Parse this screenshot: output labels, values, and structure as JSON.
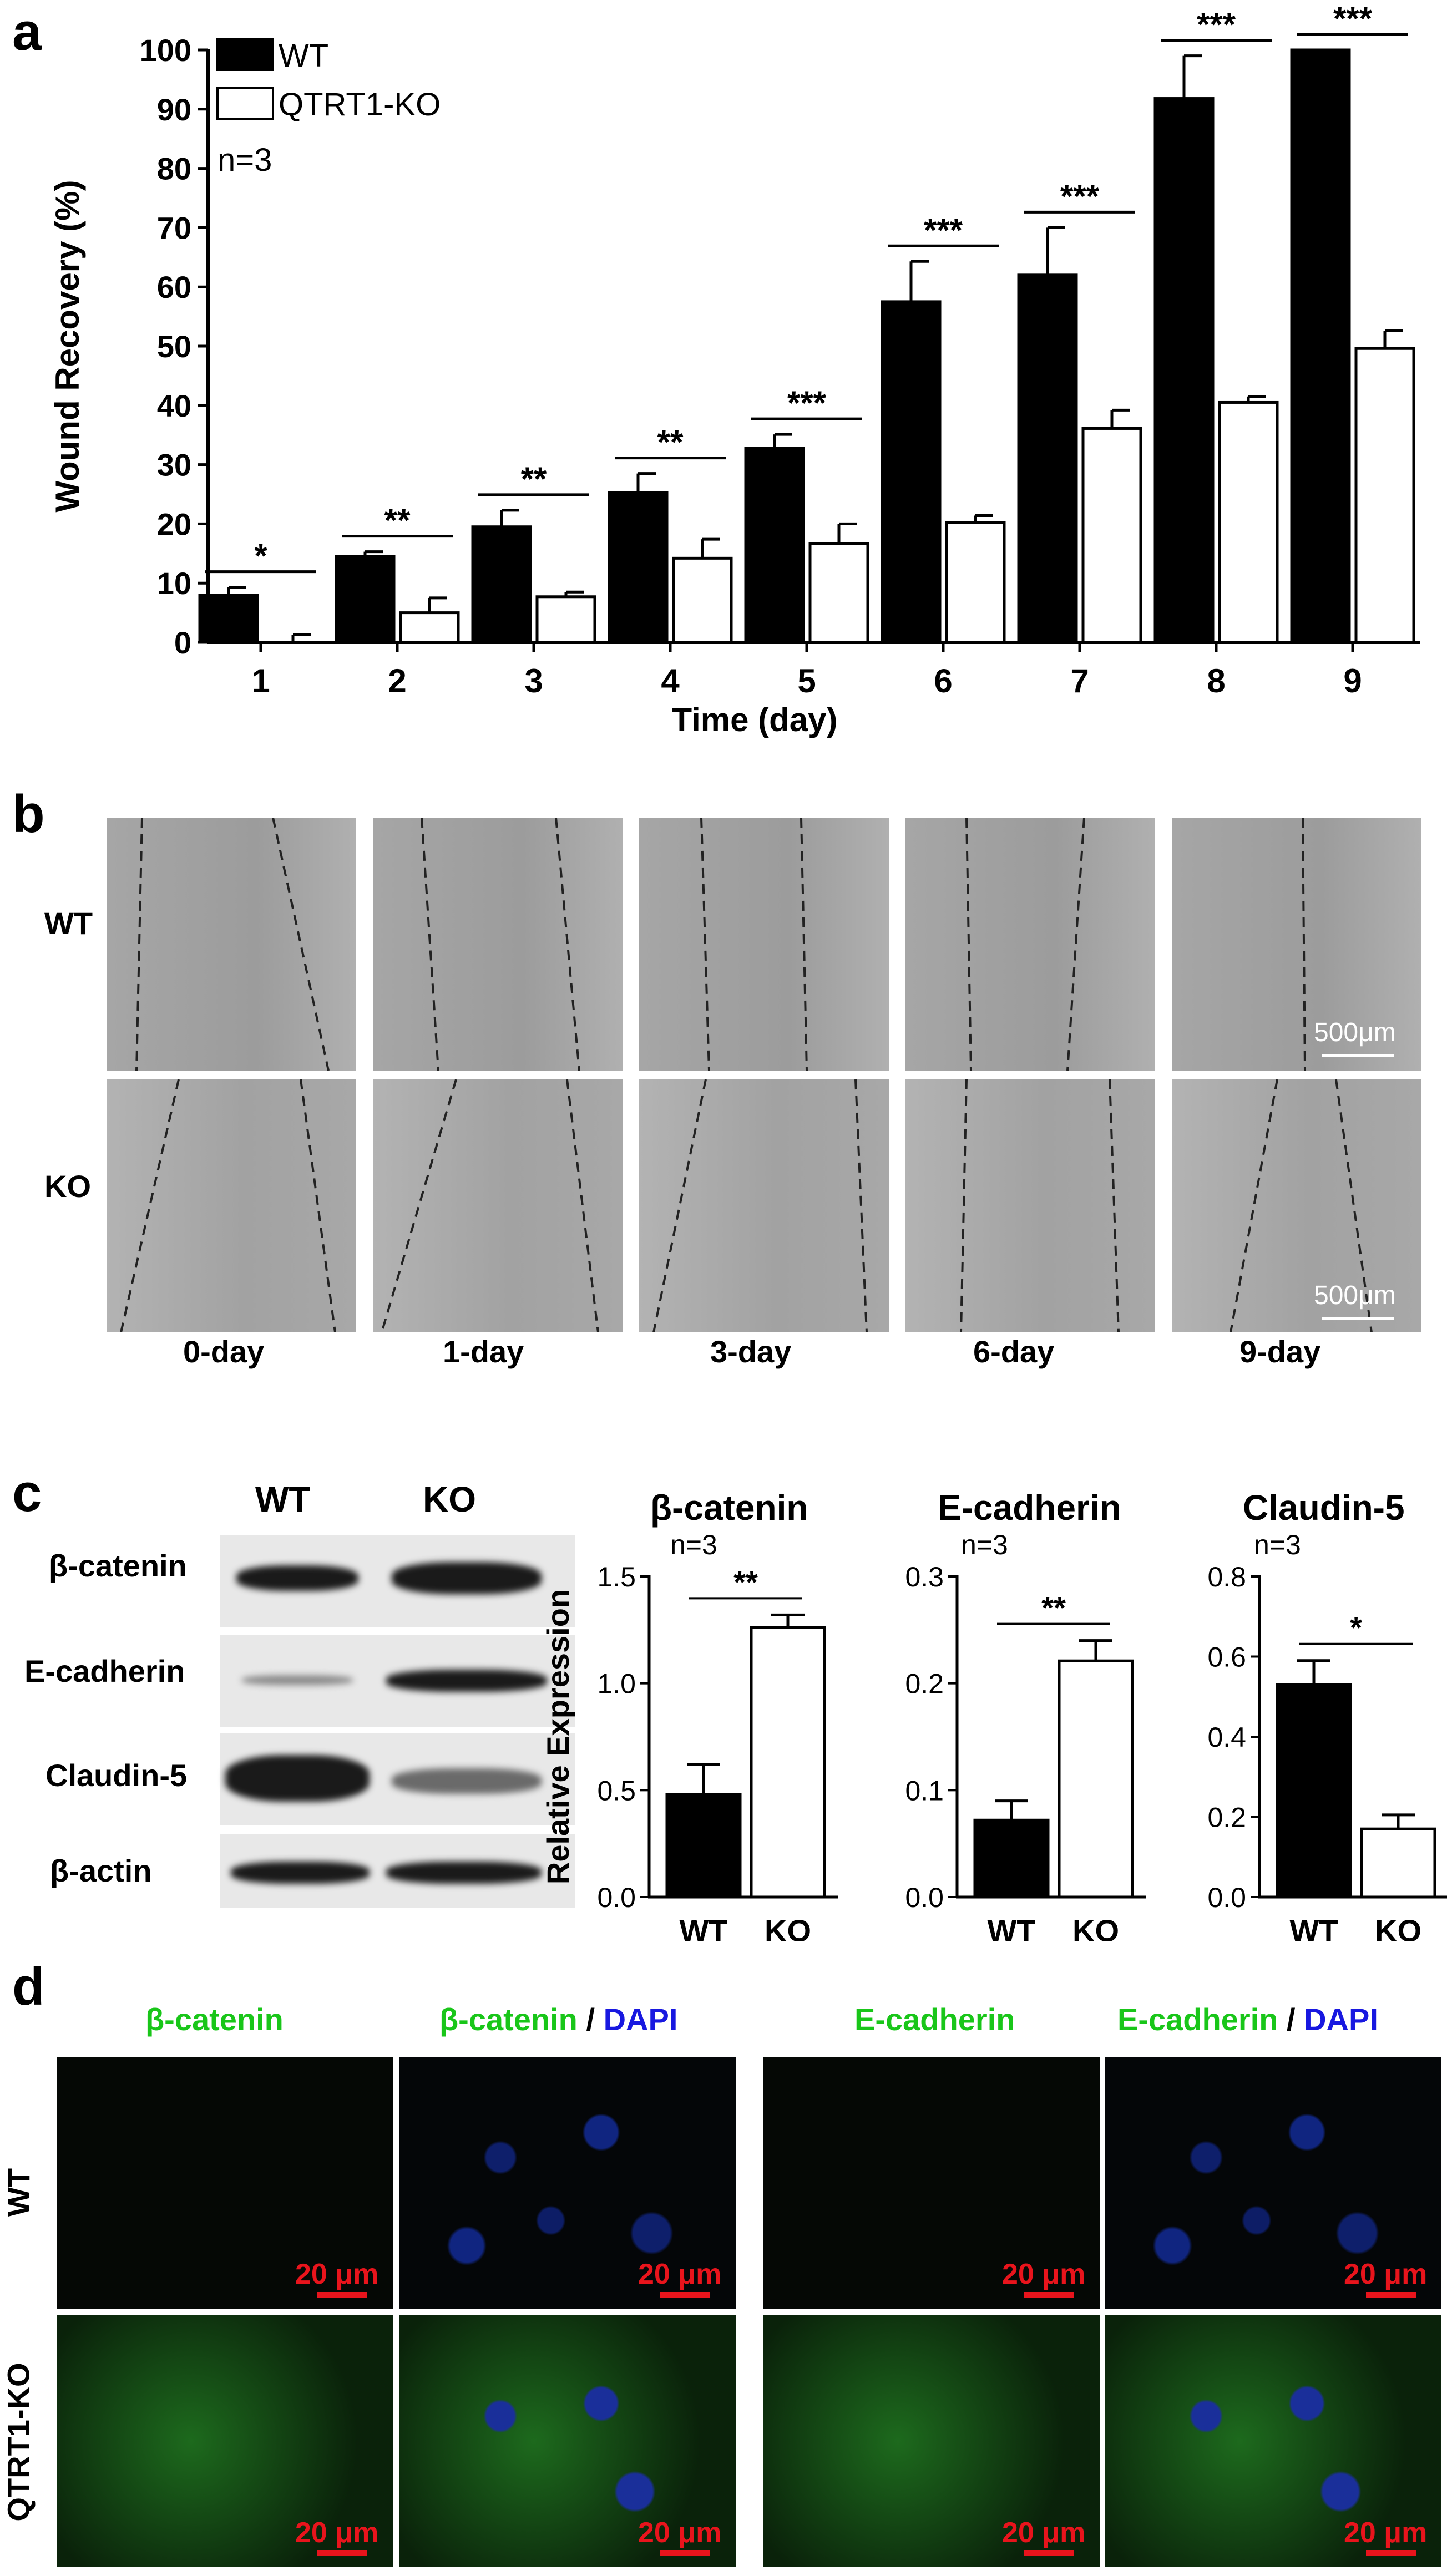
{
  "panels": {
    "a": "a",
    "b": "b",
    "c": "c",
    "d": "d"
  },
  "chart_data": [
    {
      "type": "bar",
      "categories": [
        "1",
        "2",
        "3",
        "4",
        "5",
        "6",
        "7",
        "8",
        "9"
      ],
      "series": [
        {
          "name": "WT",
          "values": [
            8,
            14.5,
            19.5,
            25.3,
            32.8,
            57.5,
            62,
            91.8,
            100
          ],
          "errors": [
            1.3,
            0.8,
            2.8,
            3.2,
            2.3,
            6.8,
            8,
            7.2,
            0
          ],
          "color": "#000000"
        },
        {
          "name": "QTRT1-KO",
          "values": [
            0,
            5,
            7.7,
            14.2,
            16.7,
            20.2,
            36.1,
            40.5,
            49.6
          ],
          "errors": [
            1.3,
            2.5,
            0.8,
            3.2,
            3.3,
            1.2,
            3.1,
            1,
            3
          ],
          "color": "#ffffff"
        }
      ],
      "significance": [
        "*",
        "**",
        "**",
        "**",
        "***",
        "***",
        "***",
        "***",
        "***"
      ],
      "xlabel": "Time (day)",
      "ylabel": "Wound Recovery (%)",
      "ylim": [
        0,
        100
      ],
      "yticks": [
        "0",
        "10",
        "20",
        "30",
        "40",
        "50",
        "60",
        "70",
        "80",
        "90",
        "100"
      ],
      "annotation": "n=3",
      "legend_position": "top-left"
    },
    {
      "type": "bar",
      "title": "β-catenin",
      "annotation": "n=3",
      "categories": [
        "WT",
        "KO"
      ],
      "values": [
        0.48,
        1.26
      ],
      "errors": [
        0.14,
        0.06
      ],
      "colors": [
        "#000000",
        "#ffffff"
      ],
      "ylabel": "Relative Expression",
      "ylim": [
        0,
        1.5
      ],
      "yticks": [
        "0.0",
        "0.5",
        "1.0",
        "1.5"
      ],
      "significance": "**"
    },
    {
      "type": "bar",
      "title": "E-cadherin",
      "annotation": "n=3",
      "categories": [
        "WT",
        "KO"
      ],
      "values": [
        0.072,
        0.221
      ],
      "errors": [
        0.018,
        0.019
      ],
      "colors": [
        "#000000",
        "#ffffff"
      ],
      "ylim": [
        0,
        0.3
      ],
      "yticks": [
        "0.0",
        "0.1",
        "0.2",
        "0.3"
      ],
      "significance": "**"
    },
    {
      "type": "bar",
      "title": "Claudin-5",
      "annotation": "n=3",
      "categories": [
        "WT",
        "KO"
      ],
      "values": [
        0.53,
        0.17
      ],
      "errors": [
        0.06,
        0.035
      ],
      "colors": [
        "#000000",
        "#ffffff"
      ],
      "ylim": [
        0,
        0.8
      ],
      "yticks": [
        "0.0",
        "0.2",
        "0.4",
        "0.6",
        "0.8"
      ],
      "significance": "*"
    }
  ],
  "panel_b": {
    "rows": [
      "WT",
      "KO"
    ],
    "columns": [
      "0-day",
      "1-day",
      "3-day",
      "6-day",
      "9-day"
    ],
    "scale_label": "500μm"
  },
  "panel_c_blot": {
    "columns": [
      "WT",
      "KO"
    ],
    "rows": [
      "β-catenin",
      "E-cadherin",
      "Claudin-5",
      "β-actin"
    ]
  },
  "panel_d": {
    "col1": "β-catenin",
    "col2_main": "β-catenin",
    "col2_sep": " / ",
    "col2_dapi": "DAPI",
    "col3": "E-cadherin",
    "col4_main": "E-cadherin",
    "col4_sep": " / ",
    "col4_dapi": "DAPI",
    "rows": [
      "WT",
      "QTRT1-KO"
    ],
    "scale_label": "20 μm",
    "colors": {
      "green": "#19c619",
      "blue": "#1818e0",
      "scale": "#e8141c"
    }
  }
}
